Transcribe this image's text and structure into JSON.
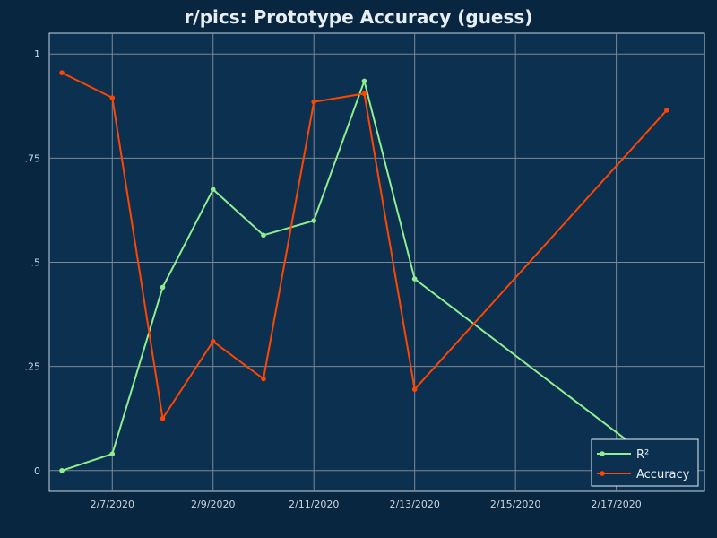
{
  "chart_data": {
    "type": "line",
    "title": "r/pics: Prototype Accuracy (guess)",
    "xlabel": "",
    "ylabel": "",
    "x": [
      "2020-02-06",
      "2020-02-07",
      "2020-02-08",
      "2020-02-09",
      "2020-02-10",
      "2020-02-11",
      "2020-02-12",
      "2020-02-13",
      "2020-02-18"
    ],
    "xlim": [
      "2020-02-05 18:00",
      "2020-02-18 18:00"
    ],
    "x_ticks": [
      "2020-02-07",
      "2020-02-09",
      "2020-02-11",
      "2020-02-13",
      "2020-02-15",
      "2020-02-17"
    ],
    "x_tick_labels": [
      "2/7/2020",
      "2/9/2020",
      "2/11/2020",
      "2/13/2020",
      "2/15/2020",
      "2/17/2020"
    ],
    "ylim": [
      -0.05,
      1.05
    ],
    "y_ticks": [
      0,
      0.25,
      0.5,
      0.75,
      1
    ],
    "y_tick_labels": [
      "0",
      ".25",
      ".5",
      ".75",
      "1"
    ],
    "grid": true,
    "legend_position": "bottom-right",
    "series": [
      {
        "name": "R²",
        "color": "#90ee90",
        "values": [
          0.0,
          0.04,
          0.44,
          0.675,
          0.565,
          0.6,
          0.935,
          0.46,
          0.0
        ]
      },
      {
        "name": "Accuracy",
        "color": "#ff4500",
        "values": [
          0.955,
          0.895,
          0.125,
          0.31,
          0.22,
          0.885,
          0.905,
          0.195,
          0.865
        ]
      }
    ],
    "colors": {
      "background": "#082640",
      "plot_background": "#0c3150",
      "grid": "#7b8793",
      "axis_text": "#c9d4de",
      "title_text": "#e6edf3"
    }
  }
}
